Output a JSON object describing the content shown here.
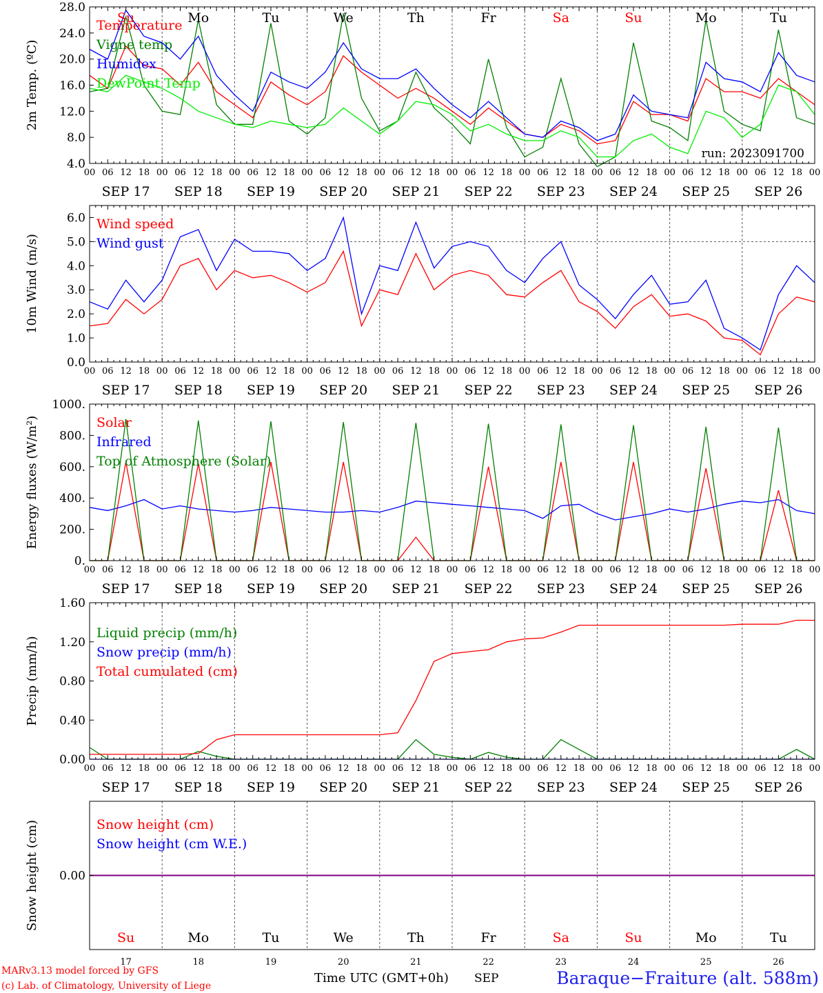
{
  "run_label": "run: 2023091700",
  "x_axis": {
    "days": [
      "SEP 17",
      "SEP 18",
      "SEP 19",
      "SEP 20",
      "SEP 21",
      "SEP 22",
      "SEP 23",
      "SEP 24",
      "SEP 25",
      "SEP 26"
    ],
    "hour_ticks": [
      "00",
      "06",
      "12",
      "18"
    ],
    "final_hour": "00",
    "weekdays": [
      "Su",
      "Mo",
      "Tu",
      "We",
      "Th",
      "Fr",
      "Sa",
      "Su",
      "Mo",
      "Tu"
    ],
    "weekday_colors": [
      "#ff0000",
      "#000000",
      "#000000",
      "#000000",
      "#000000",
      "#000000",
      "#ff0000",
      "#ff0000",
      "#000000",
      "#000000"
    ],
    "day_numbers": [
      "17",
      "18",
      "19",
      "20",
      "21",
      "22",
      "23",
      "24",
      "25",
      "26"
    ],
    "month": "SEP",
    "label": "Time UTC (GMT+0h)"
  },
  "footer": {
    "model": "MARv3.13 model forced by GFS",
    "lab": "(c) Lab. of Climatology, University of Liege",
    "station": "Baraque−Fraiture (alt. 588m)"
  },
  "colors": {
    "red": "#ff0000",
    "green": "#008000",
    "blue": "#0000ff",
    "lightgreen": "#00ee00",
    "purple": "#800080"
  },
  "chart_data": [
    {
      "type": "line",
      "ylabel": "2m Temp. (ºC)",
      "ylim": [
        4,
        28
      ],
      "ytick_labels": [
        "4.0",
        "8.0",
        "12.0",
        "16.0",
        "20.0",
        "24.0",
        "28.0"
      ],
      "x": [
        "09-17 00",
        "09-17 06",
        "09-17 12",
        "09-17 18",
        "09-18 00",
        "09-18 06",
        "09-18 12",
        "09-18 18",
        "09-19 00",
        "09-19 06",
        "09-19 12",
        "09-19 18",
        "09-20 00",
        "09-20 06",
        "09-20 12",
        "09-20 18",
        "09-21 00",
        "09-21 06",
        "09-21 12",
        "09-21 18",
        "09-22 00",
        "09-22 06",
        "09-22 12",
        "09-22 18",
        "09-23 00",
        "09-23 06",
        "09-23 12",
        "09-23 18",
        "09-24 00",
        "09-24 06",
        "09-24 12",
        "09-24 18",
        "09-25 00",
        "09-25 06",
        "09-25 12",
        "09-25 18",
        "09-26 00",
        "09-26 06",
        "09-26 12",
        "09-26 18",
        "09-27 00"
      ],
      "series": [
        {
          "name": "Temperature",
          "color": "#ff0000",
          "values": [
            17.5,
            15.5,
            22.0,
            19.0,
            18.5,
            16.0,
            19.5,
            15.0,
            13.0,
            11.0,
            16.5,
            14.5,
            13.0,
            15.0,
            20.5,
            18.0,
            16.0,
            14.0,
            15.5,
            14.0,
            12.0,
            10.0,
            12.5,
            10.5,
            8.5,
            8.0,
            10.0,
            9.0,
            7.0,
            7.5,
            13.5,
            11.5,
            11.5,
            10.5,
            17.0,
            15.0,
            15.0,
            14.0,
            17.0,
            15.0,
            13.0
          ]
        },
        {
          "name": "Vigne temp",
          "color": "#008000",
          "values": [
            15.0,
            15.5,
            26.5,
            16.0,
            12.0,
            11.5,
            26.0,
            13.0,
            10.0,
            10.0,
            25.5,
            10.5,
            8.5,
            11.0,
            27.0,
            14.0,
            9.0,
            10.5,
            18.0,
            12.5,
            10.0,
            7.0,
            20.0,
            9.5,
            5.0,
            6.5,
            17.0,
            7.0,
            3.5,
            5.0,
            22.5,
            10.5,
            9.5,
            7.5,
            26.0,
            12.0,
            10.0,
            9.0,
            24.5,
            11.0,
            10.0
          ]
        },
        {
          "name": "Humidex",
          "color": "#0000ff",
          "values": [
            21.5,
            20.0,
            27.5,
            23.5,
            22.5,
            20.0,
            23.5,
            17.5,
            14.5,
            12.0,
            18.0,
            16.5,
            15.5,
            18.0,
            22.5,
            18.5,
            17.0,
            17.0,
            18.5,
            15.5,
            13.0,
            11.0,
            13.5,
            11.0,
            8.5,
            8.0,
            10.5,
            9.5,
            7.5,
            8.5,
            14.5,
            12.0,
            11.5,
            11.0,
            19.5,
            17.0,
            16.5,
            15.0,
            21.0,
            17.5,
            16.5
          ]
        },
        {
          "name": "DewPoint Temp",
          "color": "#00ee00",
          "values": [
            15.5,
            15.0,
            17.5,
            16.5,
            15.5,
            14.0,
            12.0,
            11.0,
            10.0,
            9.5,
            10.5,
            10.0,
            9.5,
            10.0,
            12.5,
            10.5,
            8.5,
            10.5,
            13.5,
            13.0,
            11.5,
            9.0,
            10.0,
            8.5,
            7.5,
            7.5,
            9.0,
            8.0,
            5.0,
            5.0,
            7.5,
            8.5,
            6.5,
            5.5,
            12.0,
            11.0,
            8.0,
            10.0,
            16.0,
            15.0,
            11.5
          ]
        }
      ],
      "legend_location": "upper-left"
    },
    {
      "type": "line",
      "ylabel": "10m Wind (m/s)",
      "ylim": [
        0,
        6.5
      ],
      "ytick_labels": [
        "0.0",
        "1.0",
        "2.0",
        "3.0",
        "4.0",
        "5.0",
        "6.0"
      ],
      "x": [
        "09-17 00",
        "09-17 06",
        "09-17 12",
        "09-17 18",
        "09-18 00",
        "09-18 06",
        "09-18 12",
        "09-18 18",
        "09-19 00",
        "09-19 06",
        "09-19 12",
        "09-19 18",
        "09-20 00",
        "09-20 06",
        "09-20 12",
        "09-20 18",
        "09-21 00",
        "09-21 06",
        "09-21 12",
        "09-21 18",
        "09-22 00",
        "09-22 06",
        "09-22 12",
        "09-22 18",
        "09-23 00",
        "09-23 06",
        "09-23 12",
        "09-23 18",
        "09-24 00",
        "09-24 06",
        "09-24 12",
        "09-24 18",
        "09-25 00",
        "09-25 06",
        "09-25 12",
        "09-25 18",
        "09-26 00",
        "09-26 06",
        "09-26 12",
        "09-26 18",
        "09-27 00"
      ],
      "series": [
        {
          "name": "Wind speed",
          "color": "#ff0000",
          "values": [
            1.5,
            1.6,
            2.6,
            2.0,
            2.6,
            4.0,
            4.3,
            3.0,
            3.8,
            3.5,
            3.6,
            3.3,
            2.9,
            3.3,
            4.6,
            1.5,
            3.0,
            2.8,
            4.5,
            3.0,
            3.6,
            3.8,
            3.6,
            2.8,
            2.7,
            3.3,
            3.8,
            2.5,
            2.1,
            1.4,
            2.3,
            2.8,
            1.9,
            2.0,
            1.7,
            1.0,
            0.9,
            0.3,
            2.0,
            2.7,
            2.5
          ]
        },
        {
          "name": "Wind gust",
          "color": "#0000ff",
          "values": [
            2.5,
            2.2,
            3.4,
            2.5,
            3.4,
            5.2,
            5.5,
            3.8,
            5.1,
            4.6,
            4.6,
            4.5,
            3.8,
            4.3,
            6.0,
            2.0,
            4.0,
            3.8,
            5.8,
            3.9,
            4.8,
            5.0,
            4.8,
            3.8,
            3.3,
            4.3,
            5.0,
            3.2,
            2.6,
            1.8,
            2.8,
            3.6,
            2.4,
            2.5,
            3.4,
            1.4,
            1.0,
            0.5,
            2.8,
            4.0,
            3.3
          ]
        }
      ],
      "reference_line": 5.0,
      "legend_location": "upper-left"
    },
    {
      "type": "line",
      "ylabel": "Energy fluxes (W/m²)",
      "ylim": [
        0,
        1000
      ],
      "ytick_labels": [
        "0.",
        "200.",
        "400.",
        "600.",
        "800.",
        "1000."
      ],
      "x": [
        "09-17 00",
        "09-17 06",
        "09-17 12",
        "09-17 18",
        "09-18 00",
        "09-18 06",
        "09-18 12",
        "09-18 18",
        "09-19 00",
        "09-19 06",
        "09-19 12",
        "09-19 18",
        "09-20 00",
        "09-20 06",
        "09-20 12",
        "09-20 18",
        "09-21 00",
        "09-21 06",
        "09-21 12",
        "09-21 18",
        "09-22 00",
        "09-22 06",
        "09-22 12",
        "09-22 18",
        "09-23 00",
        "09-23 06",
        "09-23 12",
        "09-23 18",
        "09-24 00",
        "09-24 06",
        "09-24 12",
        "09-24 18",
        "09-25 00",
        "09-25 06",
        "09-25 12",
        "09-25 18",
        "09-26 00",
        "09-26 06",
        "09-26 12",
        "09-26 18",
        "09-27 00"
      ],
      "series": [
        {
          "name": "Solar",
          "color": "#ff0000",
          "values": [
            0,
            0,
            630,
            0,
            0,
            0,
            620,
            0,
            0,
            0,
            630,
            0,
            0,
            0,
            630,
            0,
            0,
            0,
            150,
            0,
            0,
            0,
            600,
            0,
            0,
            0,
            630,
            0,
            0,
            0,
            630,
            0,
            0,
            0,
            590,
            0,
            0,
            0,
            450,
            0,
            0
          ]
        },
        {
          "name": "Infrared",
          "color": "#0000ff",
          "values": [
            340,
            320,
            350,
            390,
            330,
            350,
            330,
            320,
            310,
            320,
            340,
            330,
            320,
            310,
            310,
            320,
            310,
            340,
            380,
            370,
            360,
            350,
            340,
            330,
            320,
            270,
            350,
            360,
            300,
            260,
            280,
            300,
            330,
            310,
            330,
            360,
            380,
            370,
            390,
            320,
            300
          ]
        },
        {
          "name": "Top of Atmosphere (Solar)",
          "color": "#008000",
          "values": [
            0,
            0,
            905,
            0,
            0,
            0,
            895,
            0,
            0,
            0,
            890,
            0,
            0,
            0,
            885,
            0,
            0,
            0,
            880,
            0,
            0,
            0,
            875,
            0,
            0,
            0,
            870,
            0,
            0,
            0,
            865,
            0,
            0,
            0,
            855,
            0,
            0,
            0,
            850,
            0,
            0
          ]
        }
      ],
      "legend_location": "upper-left"
    },
    {
      "type": "line",
      "ylabel": "Precip (mm/h)",
      "ylim": [
        0,
        1.6
      ],
      "ytick_labels": [
        "0.00",
        "0.40",
        "0.80",
        "1.20",
        "1.60"
      ],
      "x": [
        "09-17 00",
        "09-17 06",
        "09-17 12",
        "09-17 18",
        "09-18 00",
        "09-18 06",
        "09-18 12",
        "09-18 18",
        "09-19 00",
        "09-19 06",
        "09-19 12",
        "09-19 18",
        "09-20 00",
        "09-20 06",
        "09-20 12",
        "09-20 18",
        "09-21 00",
        "09-21 06",
        "09-21 12",
        "09-21 18",
        "09-22 00",
        "09-22 06",
        "09-22 12",
        "09-22 18",
        "09-23 00",
        "09-23 06",
        "09-23 12",
        "09-23 18",
        "09-24 00",
        "09-24 06",
        "09-24 12",
        "09-24 18",
        "09-25 00",
        "09-25 06",
        "09-25 12",
        "09-25 18",
        "09-26 00",
        "09-26 06",
        "09-26 12",
        "09-26 18",
        "09-27 00"
      ],
      "series": [
        {
          "name": "Liquid precip (mm/h)",
          "color": "#008000",
          "values": [
            0.12,
            0,
            0,
            0,
            0,
            0,
            0.08,
            0.03,
            0,
            0,
            0,
            0,
            0,
            0,
            0,
            0,
            0,
            0,
            0.2,
            0.05,
            0.02,
            0,
            0.07,
            0.02,
            0,
            0,
            0.2,
            0.1,
            0,
            0,
            0,
            0,
            0,
            0,
            0,
            0,
            0,
            0,
            0,
            0.1,
            0
          ]
        },
        {
          "name": "Snow precip (mm/h)",
          "color": "#0000ff",
          "values": [
            0,
            0,
            0,
            0,
            0,
            0,
            0,
            0,
            0,
            0,
            0,
            0,
            0,
            0,
            0,
            0,
            0,
            0,
            0,
            0,
            0,
            0,
            0,
            0,
            0,
            0,
            0,
            0,
            0,
            0,
            0,
            0,
            0,
            0,
            0,
            0,
            0,
            0,
            0,
            0,
            0
          ]
        },
        {
          "name": "Total cumulated (cm)",
          "color": "#ff0000",
          "values": [
            0.05,
            0.05,
            0.05,
            0.05,
            0.05,
            0.05,
            0.06,
            0.2,
            0.25,
            0.25,
            0.25,
            0.25,
            0.25,
            0.25,
            0.25,
            0.25,
            0.25,
            0.27,
            0.6,
            1.0,
            1.08,
            1.1,
            1.12,
            1.2,
            1.23,
            1.24,
            1.3,
            1.37,
            1.37,
            1.37,
            1.37,
            1.37,
            1.37,
            1.37,
            1.37,
            1.37,
            1.38,
            1.38,
            1.38,
            1.42,
            1.42
          ]
        }
      ],
      "legend_location": "upper-left"
    },
    {
      "type": "line",
      "ylabel": "Snow height (cm)",
      "ylim": [
        -1,
        1
      ],
      "ytick_labels": [
        "0.00"
      ],
      "x": [
        "09-17 00",
        "09-27 00"
      ],
      "series": [
        {
          "name": "Snow height (cm)",
          "color": "#ff0000",
          "values": [
            0,
            0
          ]
        },
        {
          "name": "Snow height (cm W.E.)",
          "color": "#0000ff",
          "values": [
            0,
            0
          ]
        }
      ],
      "legend_location": "upper-left"
    }
  ]
}
